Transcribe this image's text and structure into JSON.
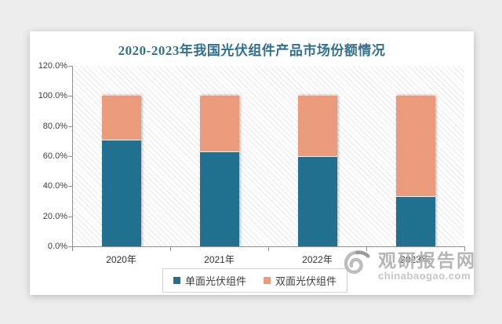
{
  "page": {
    "background": "#ededed",
    "card_background": "#ffffff"
  },
  "chart_data": {
    "type": "bar",
    "subtype": "stacked-percent",
    "title": "2020-2023年我国光伏组件产品市场份额情况",
    "title_color": "#31708F",
    "categories": [
      "2020年",
      "2021年",
      "2022年",
      "2023年"
    ],
    "series": [
      {
        "name": "单面光伏组件",
        "color": "#21708F",
        "values": [
          70.3,
          62.6,
          59.6,
          33.0
        ]
      },
      {
        "name": "双面光伏组件",
        "color": "#E99B7B",
        "values": [
          29.7,
          37.4,
          40.4,
          67.0
        ]
      }
    ],
    "ylim": [
      0,
      120
    ],
    "ytick_values": [
      0,
      20,
      40,
      60,
      80,
      100,
      120
    ],
    "ytick_labels": [
      "0.0%",
      "20.0%",
      "40.0%",
      "60.0%",
      "80.0%",
      "100.0%",
      "120.0%"
    ],
    "grid": "hatched-background-no-gridlines",
    "legend_position": "bottom"
  },
  "watermark": {
    "logo": "swirl-icon",
    "text": "观研报告网",
    "subtext": "chinabaogao.com",
    "color": "#b5b5b5"
  }
}
